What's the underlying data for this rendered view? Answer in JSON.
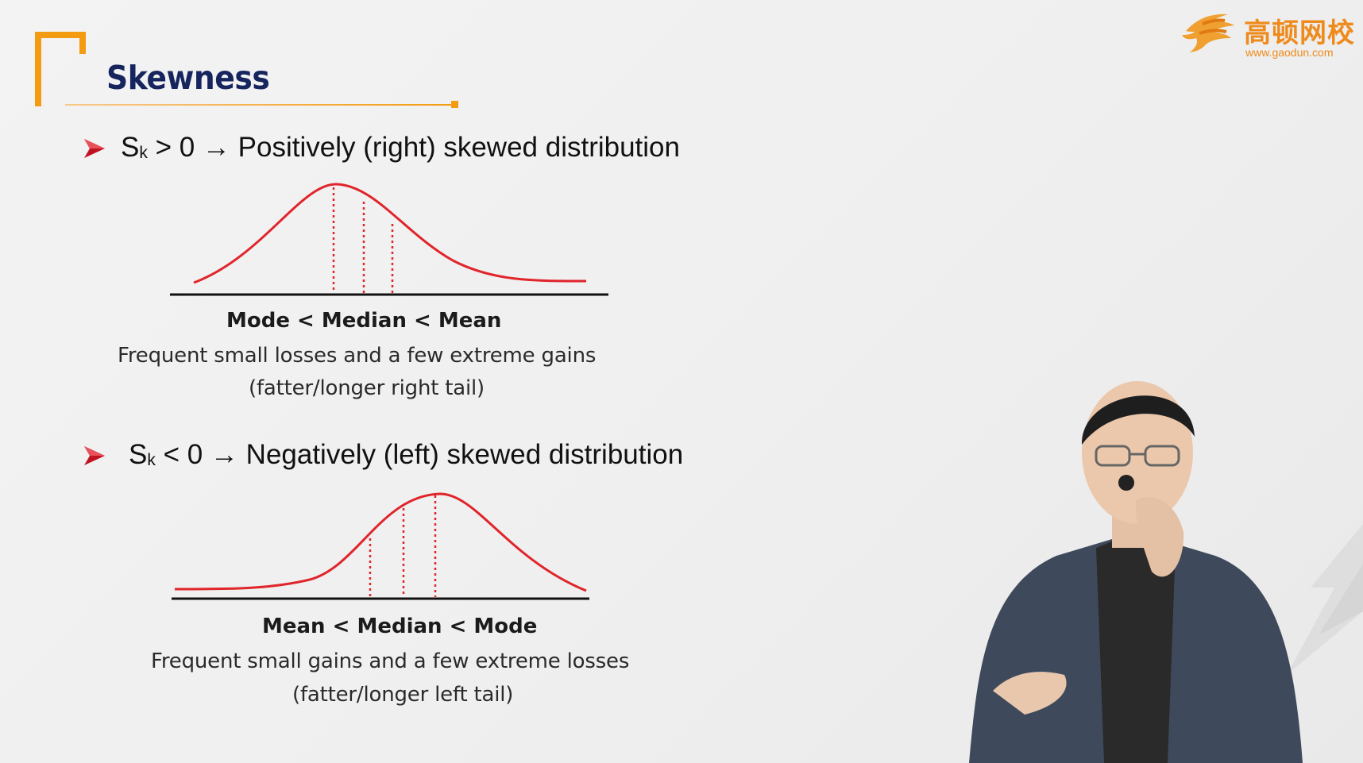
{
  "slide": {
    "title": "Skewness",
    "logo": {
      "name": "高顿网校",
      "url": "www.gaodun.com",
      "icon": "gaodun-swirl-logo"
    },
    "accent_color": "#f39c12",
    "curve_color": "#e0252b",
    "positive": {
      "s": "S",
      "sub": "k",
      "condition": " > 0 ",
      "arrow": "→",
      "text": " Positively (right) skewed distribution",
      "order": "Mode < Median < Mean",
      "description": "Frequent small losses and a few extreme gains",
      "tail": "(fatter/longer right tail)"
    },
    "negative": {
      "s": "S",
      "sub": "k",
      "condition": " < 0 ",
      "arrow": "→",
      "text": " Negatively (left) skewed distribution",
      "order": "Mean < Median < Mode",
      "description": "Frequent small gains and a few extreme losses",
      "tail": "(fatter/longer left tail)"
    }
  }
}
